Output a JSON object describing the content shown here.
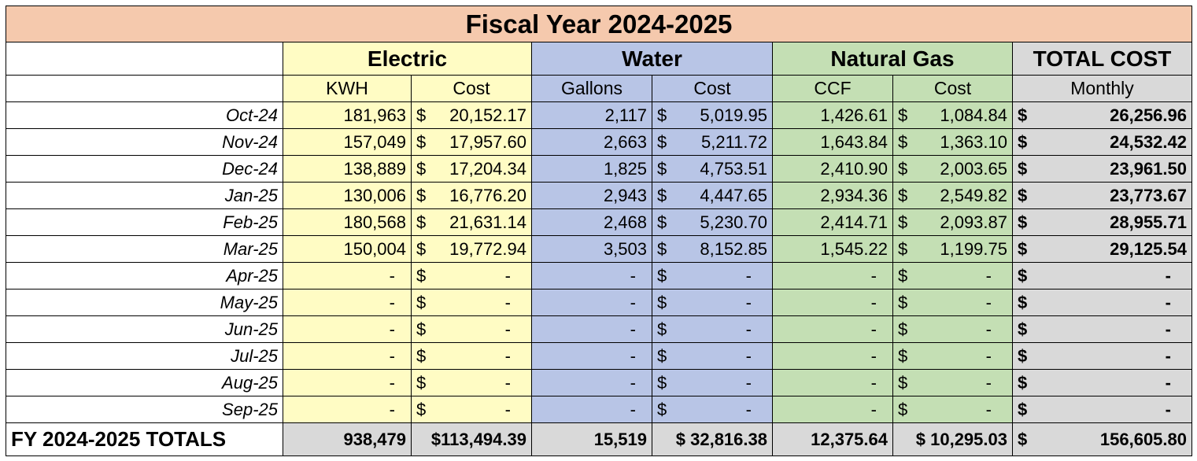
{
  "title": "Fiscal Year 2024-2025",
  "groups": {
    "electric": "Electric",
    "water": "Water",
    "gas": "Natural Gas",
    "total": "TOTAL COST"
  },
  "subheaders": {
    "electric_units": "KWH",
    "electric_cost": "Cost",
    "water_units": "Gallons",
    "water_cost": "Cost",
    "gas_units": "CCF",
    "gas_cost": "Cost",
    "total_monthly": "Monthly"
  },
  "currency": "$",
  "rows": [
    {
      "month": "Oct-24",
      "kwh": "181,963",
      "elec_cost": "20,152.17",
      "gallons": "2,117",
      "water_cost": "5,019.95",
      "ccf": "1,426.61",
      "gas_cost": "1,084.84",
      "total": "26,256.96"
    },
    {
      "month": "Nov-24",
      "kwh": "157,049",
      "elec_cost": "17,957.60",
      "gallons": "2,663",
      "water_cost": "5,211.72",
      "ccf": "1,643.84",
      "gas_cost": "1,363.10",
      "total": "24,532.42"
    },
    {
      "month": "Dec-24",
      "kwh": "138,889",
      "elec_cost": "17,204.34",
      "gallons": "1,825",
      "water_cost": "4,753.51",
      "ccf": "2,410.90",
      "gas_cost": "2,003.65",
      "total": "23,961.50"
    },
    {
      "month": "Jan-25",
      "kwh": "130,006",
      "elec_cost": "16,776.20",
      "gallons": "2,943",
      "water_cost": "4,447.65",
      "ccf": "2,934.36",
      "gas_cost": "2,549.82",
      "total": "23,773.67"
    },
    {
      "month": "Feb-25",
      "kwh": "180,568",
      "elec_cost": "21,631.14",
      "gallons": "2,468",
      "water_cost": "5,230.70",
      "ccf": "2,414.71",
      "gas_cost": "2,093.87",
      "total": "28,955.71"
    },
    {
      "month": "Mar-25",
      "kwh": "150,004",
      "elec_cost": "19,772.94",
      "gallons": "3,503",
      "water_cost": "8,152.85",
      "ccf": "1,545.22",
      "gas_cost": "1,199.75",
      "total": "29,125.54"
    },
    {
      "month": "Apr-25",
      "kwh": "-",
      "elec_cost": "-",
      "gallons": "-",
      "water_cost": "-",
      "ccf": "-",
      "gas_cost": "-",
      "total": "-"
    },
    {
      "month": "May-25",
      "kwh": "-",
      "elec_cost": "-",
      "gallons": "-",
      "water_cost": "-",
      "ccf": "-",
      "gas_cost": "-",
      "total": "-"
    },
    {
      "month": "Jun-25",
      "kwh": "-",
      "elec_cost": "-",
      "gallons": "-",
      "water_cost": "-",
      "ccf": "-",
      "gas_cost": "-",
      "total": "-"
    },
    {
      "month": "Jul-25",
      "kwh": "-",
      "elec_cost": "-",
      "gallons": "-",
      "water_cost": "-",
      "ccf": "-",
      "gas_cost": "-",
      "total": "-"
    },
    {
      "month": "Aug-25",
      "kwh": "-",
      "elec_cost": "-",
      "gallons": "-",
      "water_cost": "-",
      "ccf": "-",
      "gas_cost": "-",
      "total": "-"
    },
    {
      "month": "Sep-25",
      "kwh": "-",
      "elec_cost": "-",
      "gallons": "-",
      "water_cost": "-",
      "ccf": "-",
      "gas_cost": "-",
      "total": "-"
    }
  ],
  "totals": {
    "label": "FY 2024-2025 TOTALS",
    "kwh": "938,479",
    "elec_cost": "$113,494.39",
    "gallons": "15,519",
    "water_cost": "$ 32,816.38",
    "ccf": "12,375.64",
    "gas_cost": "$ 10,295.03",
    "total_currency": "$",
    "total": "156,605.80"
  },
  "colors": {
    "title_bg": "#f5c9ad",
    "electric_bg": "#fffcc4",
    "water_bg": "#b8c5e6",
    "gas_bg": "#c4dfb4",
    "total_bg": "#d9d9d9"
  }
}
